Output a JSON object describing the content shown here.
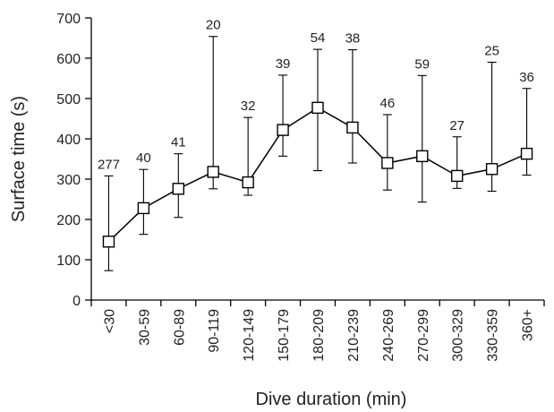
{
  "chart_data": {
    "type": "line",
    "title": "",
    "xlabel": "Dive duration (min)",
    "ylabel": "Surface time (s)",
    "ylim": [
      0,
      700
    ],
    "yticks": [
      0,
      100,
      200,
      300,
      400,
      500,
      600,
      700
    ],
    "categories": [
      "<30",
      "30-59",
      "60-89",
      "90-119",
      "120-149",
      "150-179",
      "180-209",
      "210-239",
      "240-269",
      "270-299",
      "300-329",
      "330-359",
      "360+"
    ],
    "series": [
      {
        "values": [
          145,
          228,
          276,
          318,
          292,
          422,
          477,
          428,
          340,
          357,
          308,
          325,
          363
        ],
        "error_low": [
          73,
          163,
          205,
          276,
          260,
          357,
          321,
          340,
          273,
          243,
          277,
          270,
          310
        ],
        "error_high": [
          308,
          324,
          363,
          654,
          453,
          558,
          622,
          621,
          460,
          557,
          405,
          590,
          525
        ],
        "counts": [
          "277",
          "40",
          "41",
          "20",
          "32",
          "39",
          "54",
          "38",
          "46",
          "59",
          "27",
          "25",
          "36"
        ]
      }
    ],
    "marker": "square",
    "line_color": "#000000",
    "grid": false
  }
}
